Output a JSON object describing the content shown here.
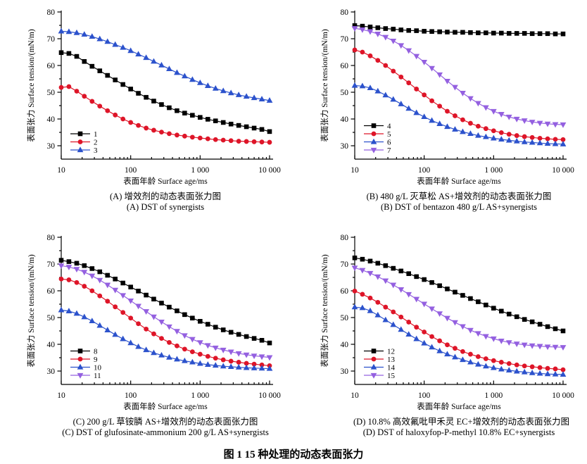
{
  "figure": {
    "title": "图 1  15 种处理的动态表面张力"
  },
  "chart_data": {
    "type": "line",
    "xscale": "log",
    "xlim": [
      10,
      10000
    ],
    "ylim": [
      25,
      80
    ],
    "xlabel": "表面年龄 Surface age/ms",
    "ylabel": "表面张力 Surface tension/(mN/m)",
    "xtick_values": [
      10,
      100,
      1000,
      10000
    ],
    "xtick_labels": [
      "10",
      "100",
      "1 000",
      "10 000"
    ],
    "yticks": [
      30,
      40,
      50,
      60,
      70,
      80
    ],
    "ytick_minor": [
      35,
      45,
      55,
      65,
      75
    ],
    "grid": false,
    "legend_position": "lower-left-inside",
    "x": [
      10,
      12.9,
      16.7,
      21.5,
      27.8,
      35.9,
      46.4,
      59.9,
      77.4,
      100,
      129,
      167,
      215,
      278,
      359,
      464,
      599,
      774,
      1000,
      1292,
      1668,
      2154,
      2783,
      3594,
      4642,
      5995,
      7743,
      10000
    ],
    "panels": [
      {
        "panel": "A",
        "caption_zh": "(A) 增效剂的动态表面张力图",
        "caption_en": "(A) DST of synergists",
        "series": [
          {
            "name": "1",
            "color": "#000000",
            "marker": "square",
            "values": [
              64.8,
              64.5,
              63.4,
              61.5,
              59.7,
              58.0,
              56.3,
              54.6,
              52.9,
              51.2,
              49.6,
              48.1,
              46.7,
              45.4,
              44.2,
              43.1,
              42.2,
              41.4,
              40.6,
              39.9,
              39.3,
              38.7,
              38.1,
              37.6,
              37.1,
              36.6,
              36.1,
              35.3
            ]
          },
          {
            "name": "2",
            "color": "#de1528",
            "marker": "circle",
            "values": [
              51.8,
              52.1,
              50.4,
              48.5,
              46.6,
              44.8,
              43.1,
              41.5,
              40.0,
              38.7,
              37.6,
              36.6,
              35.8,
              35.1,
              34.5,
              34.0,
              33.6,
              33.2,
              32.9,
              32.6,
              32.3,
              32.1,
              31.9,
              31.7,
              31.6,
              31.5,
              31.4,
              31.3
            ]
          },
          {
            "name": "3",
            "color": "#2c52cc",
            "marker": "triangle-up",
            "values": [
              72.8,
              72.6,
              72.2,
              71.6,
              70.8,
              69.9,
              68.9,
              67.8,
              66.7,
              65.5,
              64.2,
              62.9,
              61.5,
              60.1,
              58.7,
              57.3,
              56.0,
              54.7,
              53.5,
              52.4,
              51.4,
              50.5,
              49.7,
              49.0,
              48.4,
              47.9,
              47.4,
              46.9
            ]
          }
        ]
      },
      {
        "panel": "B",
        "caption_zh": "(B) 480 g/L 灭草松 AS+增效剂的动态表面张力图",
        "caption_en": "(B) DST of bentazon 480 g/L AS+synergists",
        "series": [
          {
            "name": "4",
            "color": "#000000",
            "marker": "square",
            "values": [
              74.9,
              74.7,
              74.4,
              74.1,
              73.8,
              73.6,
              73.3,
              73.1,
              73.0,
              72.8,
              72.7,
              72.6,
              72.5,
              72.4,
              72.4,
              72.3,
              72.2,
              72.2,
              72.1,
              72.1,
              72.0,
              72.0,
              72.0,
              71.9,
              71.9,
              71.9,
              71.8,
              71.8
            ]
          },
          {
            "name": "5",
            "color": "#de1528",
            "marker": "circle",
            "values": [
              65.8,
              65.0,
              63.6,
              61.9,
              60.0,
              57.9,
              55.7,
              53.5,
              51.2,
              49.0,
              46.8,
              44.8,
              42.9,
              41.2,
              39.7,
              38.4,
              37.3,
              36.4,
              35.6,
              34.9,
              34.3,
              33.8,
              33.4,
              33.1,
              32.8,
              32.6,
              32.4,
              32.3
            ]
          },
          {
            "name": "6",
            "color": "#2c52cc",
            "marker": "triangle-up",
            "values": [
              52.5,
              52.3,
              51.6,
              50.4,
              48.9,
              47.3,
              45.6,
              43.9,
              42.3,
              40.8,
              39.4,
              38.2,
              37.1,
              36.1,
              35.2,
              34.5,
              33.8,
              33.3,
              32.8,
              32.4,
              32.0,
              31.7,
              31.4,
              31.2,
              31.0,
              30.8,
              30.7,
              30.6
            ]
          },
          {
            "name": "7",
            "color": "#9460e0",
            "marker": "triangle-down",
            "values": [
              73.9,
              73.4,
              72.7,
              71.8,
              70.6,
              69.2,
              67.5,
              65.6,
              63.5,
              61.3,
              59.0,
              56.6,
              54.2,
              51.9,
              49.7,
              47.7,
              45.9,
              44.3,
              42.9,
              41.8,
              40.8,
              40.0,
              39.4,
              38.9,
              38.5,
              38.2,
              38.0,
              37.9
            ]
          }
        ]
      },
      {
        "panel": "C",
        "caption_zh": "(C) 200 g/L 草铵膦 AS+增效剂的动态表面张力图",
        "caption_en": "(C) DST of glufosinate-ammonium 200 g/L AS+synergists",
        "series": [
          {
            "name": "8",
            "color": "#000000",
            "marker": "square",
            "values": [
              71.4,
              70.9,
              70.3,
              69.4,
              68.3,
              67.1,
              65.8,
              64.4,
              62.9,
              61.4,
              59.9,
              58.4,
              56.9,
              55.4,
              53.9,
              52.5,
              51.1,
              49.8,
              48.6,
              47.5,
              46.4,
              45.4,
              44.5,
              43.7,
              42.9,
              42.2,
              41.5,
              40.5
            ]
          },
          {
            "name": "9",
            "color": "#de1528",
            "marker": "circle",
            "values": [
              64.4,
              64.1,
              63.1,
              61.7,
              60.0,
              58.1,
              56.1,
              54.0,
              51.9,
              49.8,
              47.7,
              45.7,
              43.9,
              42.2,
              40.7,
              39.4,
              38.2,
              37.2,
              36.3,
              35.5,
              34.8,
              34.2,
              33.7,
              33.3,
              32.9,
              32.6,
              32.3,
              32.0
            ]
          },
          {
            "name": "10",
            "color": "#2c52cc",
            "marker": "triangle-up",
            "values": [
              52.8,
              52.4,
              51.5,
              50.2,
              48.7,
              47.0,
              45.3,
              43.6,
              42.0,
              40.5,
              39.1,
              37.9,
              36.8,
              35.9,
              35.1,
              34.4,
              33.8,
              33.3,
              32.8,
              32.4,
              32.1,
              31.8,
              31.6,
              31.4,
              31.2,
              31.1,
              31.0,
              30.9
            ]
          },
          {
            "name": "11",
            "color": "#9460e0",
            "marker": "triangle-down",
            "values": [
              69.4,
              68.9,
              68.1,
              67.0,
              65.6,
              64.0,
              62.2,
              60.3,
              58.3,
              56.3,
              54.3,
              52.3,
              50.3,
              48.4,
              46.6,
              44.9,
              43.3,
              41.9,
              40.7,
              39.6,
              38.7,
              37.9,
              37.2,
              36.6,
              36.1,
              35.7,
              35.4,
              35.1
            ]
          }
        ]
      },
      {
        "panel": "D",
        "caption_zh": "(D) 10.8% 高效氟吡甲禾灵 EC+增效剂的动态表面张力图",
        "caption_en": "(D) DST of haloxyfop-P-methyl 10.8% EC+synergists",
        "series": [
          {
            "name": "12",
            "color": "#000000",
            "marker": "square",
            "values": [
              72.3,
              71.8,
              71.1,
              70.3,
              69.4,
              68.4,
              67.4,
              66.4,
              65.3,
              64.2,
              63.1,
              61.9,
              60.7,
              59.5,
              58.3,
              57.1,
              55.9,
              54.7,
              53.5,
              52.4,
              51.3,
              50.3,
              49.3,
              48.4,
              47.5,
              46.6,
              45.8,
              45.0
            ]
          },
          {
            "name": "13",
            "color": "#de1528",
            "marker": "circle",
            "values": [
              59.9,
              58.7,
              57.3,
              55.7,
              53.9,
              52.1,
              50.2,
              48.3,
              46.4,
              44.6,
              42.9,
              41.3,
              39.8,
              38.5,
              37.3,
              36.3,
              35.4,
              34.6,
              33.9,
              33.3,
              32.8,
              32.3,
              31.9,
              31.6,
              31.3,
              31.0,
              30.8,
              30.5
            ]
          },
          {
            "name": "14",
            "color": "#2c52cc",
            "marker": "triangle-up",
            "values": [
              53.9,
              53.6,
              52.5,
              50.9,
              49.1,
              47.3,
              45.5,
              43.7,
              42.0,
              40.4,
              38.9,
              37.5,
              36.3,
              35.2,
              34.2,
              33.3,
              32.5,
              31.8,
              31.2,
              30.7,
              30.3,
              29.9,
              29.6,
              29.3,
              29.1,
              28.9,
              28.8,
              28.7
            ]
          },
          {
            "name": "15",
            "color": "#9460e0",
            "marker": "triangle-down",
            "values": [
              68.6,
              67.7,
              66.6,
              65.3,
              63.8,
              62.2,
              60.5,
              58.7,
              56.9,
              55.1,
              53.3,
              51.5,
              49.8,
              48.2,
              46.7,
              45.3,
              44.1,
              43.0,
              42.1,
              41.3,
              40.7,
              40.2,
              39.8,
              39.5,
              39.3,
              39.1,
              39.0,
              38.9
            ]
          }
        ]
      }
    ]
  }
}
